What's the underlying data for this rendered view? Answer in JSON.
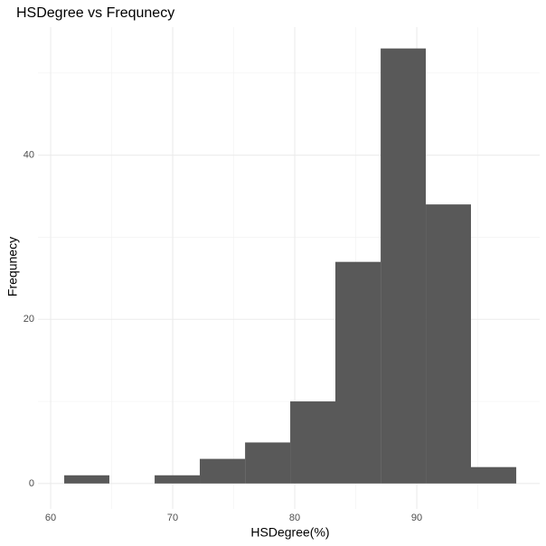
{
  "chart_data": {
    "type": "histogram",
    "title": "HSDegree vs Frequnecy",
    "x_label": "HSDegree(%)",
    "y_label": "Frequnecy",
    "bins": [
      61.11,
      64.81,
      68.52,
      72.22,
      75.93,
      79.63,
      83.33,
      87.04,
      90.74,
      94.44,
      98.15
    ],
    "values": [
      1,
      0,
      1,
      3,
      5,
      10,
      27,
      53,
      34,
      2
    ],
    "color": "#595959",
    "xlim": [
      58.96,
      100.07
    ],
    "ylim": [
      -3.1,
      55.6
    ],
    "xticks": [
      60,
      70,
      80,
      90
    ],
    "yticks": [
      0,
      20,
      40
    ],
    "x_minor_grid": [
      65,
      75,
      85,
      95
    ],
    "y_minor_grid": [
      10,
      30,
      50
    ],
    "grid": true
  }
}
